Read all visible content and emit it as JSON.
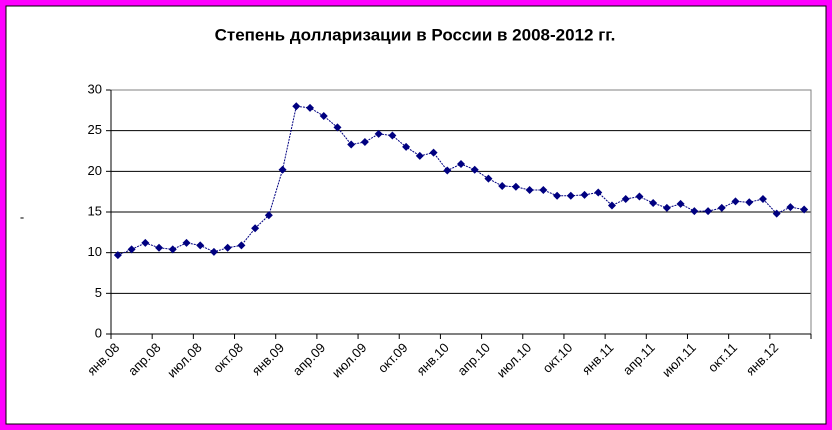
{
  "chart_data": {
    "type": "line",
    "title": "Степень долларизации в России в 2008-2012 гг.",
    "y_label": "-",
    "categories": [
      "янв.08",
      null,
      null,
      "апр.08",
      null,
      null,
      "июл.08",
      null,
      null,
      "окт.08",
      null,
      null,
      "янв.09",
      null,
      null,
      "апр.09",
      null,
      null,
      "июл.09",
      null,
      null,
      "окт.09",
      null,
      null,
      "янв.10",
      null,
      null,
      "апр.10",
      null,
      null,
      "июл.10",
      null,
      null,
      "окт.10",
      null,
      null,
      "янв.11",
      null,
      null,
      "апр.11",
      null,
      null,
      "июл.11",
      null,
      null,
      "окт.11",
      null,
      null,
      "янв.12",
      null,
      null
    ],
    "series": [
      {
        "name": null,
        "color": "#000080",
        "values": [
          9.7,
          10.4,
          11.2,
          10.6,
          10.4,
          11.2,
          10.9,
          10.1,
          10.6,
          10.9,
          13.0,
          14.6,
          20.2,
          28.0,
          27.8,
          26.8,
          25.4,
          23.3,
          23.6,
          24.6,
          24.4,
          23.0,
          21.9,
          22.3,
          20.1,
          20.9,
          20.2,
          19.1,
          18.2,
          18.1,
          17.7,
          17.7,
          17.0,
          17.0,
          17.1,
          17.4,
          15.8,
          16.6,
          16.9,
          16.1,
          15.5,
          16.0,
          15.1,
          15.1,
          15.5,
          16.3,
          16.2,
          16.6,
          14.8,
          15.6,
          15.3
        ]
      }
    ],
    "ylim": [
      0,
      30
    ],
    "yticks": [
      0,
      5,
      10,
      15,
      20,
      25,
      30
    ],
    "grid": true
  }
}
